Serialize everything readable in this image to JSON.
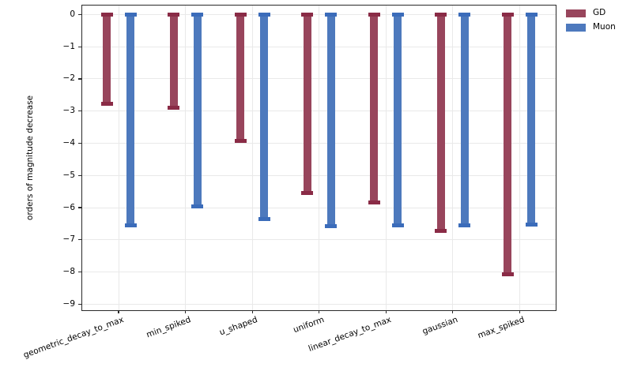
{
  "chart_data": {
    "type": "bar",
    "orientation": "vertical",
    "title": "",
    "xlabel": "",
    "ylabel": "orders of magnitude decrease",
    "categories": [
      "geometric_decay_to_max",
      "min_spiked",
      "u_shaped",
      "uniform",
      "linear_decay_to_max",
      "gaussian",
      "max_spiked"
    ],
    "series": [
      {
        "name": "GD",
        "color": "#98455c",
        "cap_color": "#8a2b46",
        "values": [
          -2.78,
          -2.9,
          -3.92,
          -5.55,
          -5.84,
          -6.72,
          -8.07
        ]
      },
      {
        "name": "Muon",
        "color": "#4d79bd",
        "cap_color": "#3b6cba",
        "values": [
          -6.56,
          -5.97,
          -6.36,
          -6.58,
          -6.54,
          -6.54,
          -6.53
        ]
      }
    ],
    "yticks": [
      0,
      -1,
      -2,
      -3,
      -4,
      -5,
      -6,
      -7,
      -8,
      -9
    ],
    "ylim": [
      -9.19,
      0.282
    ],
    "grid": true,
    "bar_style": "capped-range-bars",
    "legend": {
      "position": "outside-top-right",
      "entries": [
        "GD",
        "Muon"
      ]
    }
  },
  "colors": {
    "background": "#ffffff",
    "grid": "#e9e9e9",
    "spine": "#2a2a2a",
    "text": "#000000"
  }
}
